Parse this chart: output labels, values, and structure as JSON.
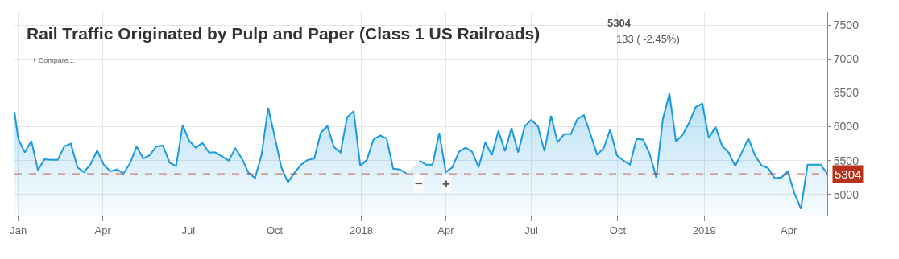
{
  "chart_data": {
    "type": "area",
    "title": "Rail Traffic Originated by Pulp and Paper (Class 1 US Railroads)",
    "annotations": [
      "5304",
      "133 ( -2.45%)",
      "+ Compare...",
      "−",
      "+"
    ],
    "x": [
      "2016-12-28",
      "2017-01-01",
      "2017-01-08",
      "2017-01-15",
      "2017-01-22",
      "2017-01-29",
      "2017-02-05",
      "2017-02-12",
      "2017-02-19",
      "2017-02-26",
      "2017-03-05",
      "2017-03-12",
      "2017-03-19",
      "2017-03-26",
      "2017-04-02",
      "2017-04-09",
      "2017-04-16",
      "2017-04-23",
      "2017-04-30",
      "2017-05-07",
      "2017-05-14",
      "2017-05-21",
      "2017-05-28",
      "2017-06-04",
      "2017-06-11",
      "2017-06-18",
      "2017-06-25",
      "2017-07-02",
      "2017-07-09",
      "2017-07-16",
      "2017-07-23",
      "2017-07-30",
      "2017-08-06",
      "2017-08-13",
      "2017-08-20",
      "2017-08-27",
      "2017-09-03",
      "2017-09-10",
      "2017-09-17",
      "2017-09-24",
      "2017-10-01",
      "2017-10-08",
      "2017-10-15",
      "2017-10-22",
      "2017-10-29",
      "2017-11-05",
      "2017-11-12",
      "2017-11-19",
      "2017-11-26",
      "2017-12-03",
      "2017-12-10",
      "2017-12-17",
      "2017-12-24",
      "2017-12-31",
      "2018-01-07",
      "2018-01-14",
      "2018-01-21",
      "2018-01-28",
      "2018-02-04",
      "2018-02-11",
      "2018-02-18",
      "2018-02-25",
      "2018-03-04",
      "2018-03-11",
      "2018-03-18",
      "2018-03-25",
      "2018-04-01",
      "2018-04-08",
      "2018-04-15",
      "2018-04-22",
      "2018-04-29",
      "2018-05-06",
      "2018-05-13",
      "2018-05-20",
      "2018-05-27",
      "2018-06-03",
      "2018-06-10",
      "2018-06-17",
      "2018-06-24",
      "2018-07-01",
      "2018-07-08",
      "2018-07-15",
      "2018-07-22",
      "2018-07-29",
      "2018-08-05",
      "2018-08-12",
      "2018-08-19",
      "2018-08-26",
      "2018-09-02",
      "2018-09-09",
      "2018-09-16",
      "2018-09-23",
      "2018-09-30",
      "2018-10-07",
      "2018-10-14",
      "2018-10-21",
      "2018-10-28",
      "2018-11-04",
      "2018-11-11",
      "2018-11-18",
      "2018-11-25",
      "2018-12-02",
      "2018-12-09",
      "2018-12-16",
      "2018-12-23",
      "2018-12-30",
      "2019-01-06",
      "2019-01-13",
      "2019-01-20",
      "2019-01-27",
      "2019-02-03",
      "2019-02-10",
      "2019-02-17",
      "2019-02-24",
      "2019-03-03",
      "2019-03-10",
      "2019-03-17",
      "2019-03-24",
      "2019-03-31",
      "2019-04-07",
      "2019-04-14",
      "2019-04-21",
      "2019-04-28",
      "2019-05-05",
      "2019-05-12"
    ],
    "series": [
      {
        "color": "#1a9ae0",
        "values": [
          6220,
          5820,
          5620,
          5790,
          5360,
          5520,
          5510,
          5510,
          5710,
          5750,
          5400,
          5330,
          5450,
          5650,
          5440,
          5340,
          5370,
          5310,
          5460,
          5710,
          5530,
          5580,
          5710,
          5720,
          5470,
          5420,
          6020,
          5790,
          5690,
          5760,
          5620,
          5620,
          5560,
          5500,
          5680,
          5530,
          5320,
          5240,
          5590,
          6280,
          5850,
          5400,
          5180,
          5320,
          5440,
          5510,
          5530,
          5910,
          6010,
          5700,
          5620,
          6140,
          6230,
          5420,
          5510,
          5810,
          5870,
          5830,
          5380,
          5370,
          5310,
          null,
          5500,
          5440,
          5440,
          5910,
          5330,
          5400,
          5630,
          5690,
          5630,
          5400,
          5770,
          5580,
          5940,
          5640,
          5980,
          5620,
          6010,
          6100,
          6010,
          5640,
          6160,
          5770,
          5890,
          5890,
          6110,
          6170,
          5890,
          5590,
          5680,
          5960,
          5580,
          5500,
          5440,
          5820,
          5810,
          5600,
          5250,
          6110,
          6490,
          5780,
          5880,
          6060,
          6290,
          6340,
          5830,
          6000,
          5720,
          5620,
          5420,
          5620,
          5830,
          5580,
          5430,
          5390,
          5240,
          5250,
          5340,
          5020,
          4790,
          5440,
          5440,
          5440,
          5304
        ]
      }
    ],
    "xlim": [
      "2016-12-28",
      "2019-05-12"
    ],
    "xticks": [
      {
        "value": "2017-01-01",
        "label": "Jan"
      },
      {
        "value": "2017-04-01",
        "label": "Apr"
      },
      {
        "value": "2017-07-01",
        "label": "Jul"
      },
      {
        "value": "2017-10-01",
        "label": "Oct"
      },
      {
        "value": "2018-01-01",
        "label": "2018"
      },
      {
        "value": "2018-04-01",
        "label": "Apr"
      },
      {
        "value": "2018-07-01",
        "label": "Jul"
      },
      {
        "value": "2018-10-01",
        "label": "Oct"
      },
      {
        "value": "2019-01-01",
        "label": "2019"
      },
      {
        "value": "2019-04-01",
        "label": "Apr"
      }
    ],
    "ylim": [
      4690,
      7690
    ],
    "yticks": [
      5000,
      5500,
      6000,
      6500,
      7000,
      7500
    ],
    "ref_lines": [
      {
        "axis": "y",
        "value": 5304,
        "label": "5304",
        "color": "#b8321a",
        "line_style": "dashed"
      }
    ],
    "grid": true,
    "marker": "none",
    "line_style": "solid"
  }
}
